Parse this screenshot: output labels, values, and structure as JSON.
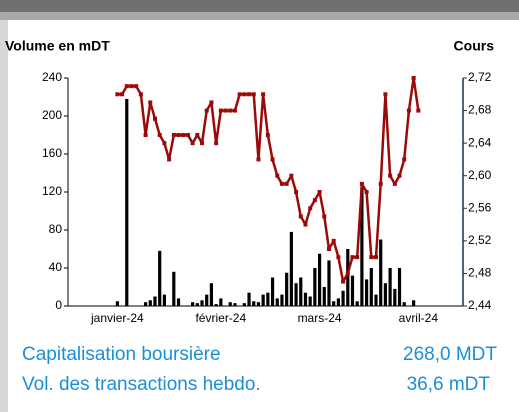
{
  "chart_data": {
    "type": "combo",
    "y_label": "Volume en mDT",
    "y2_label": "Cours",
    "categories": [
      null,
      null,
      null,
      null,
      null,
      null,
      null,
      null,
      null,
      null,
      "janvier-24",
      null,
      null,
      null,
      null,
      null,
      null,
      null,
      null,
      null,
      null,
      null,
      null,
      null,
      null,
      null,
      null,
      null,
      null,
      null,
      null,
      null,
      "février-24",
      null,
      null,
      null,
      null,
      null,
      null,
      null,
      null,
      null,
      null,
      null,
      null,
      null,
      null,
      null,
      null,
      null,
      null,
      null,
      null,
      "mars-24",
      null,
      null,
      null,
      null,
      null,
      null,
      null,
      null,
      null,
      null,
      null,
      null,
      null,
      null,
      null,
      null,
      null,
      null,
      null,
      null,
      "avril-24",
      null,
      null,
      null,
      null,
      null,
      null,
      null,
      null,
      null
    ],
    "series": [
      {
        "type": "bar",
        "color": "#000000",
        "values": [
          null,
          null,
          null,
          null,
          null,
          null,
          null,
          null,
          null,
          null,
          5,
          0,
          218,
          0,
          0,
          0,
          4,
          6,
          10,
          58,
          12,
          0,
          36,
          8,
          0,
          0,
          4,
          3,
          6,
          12,
          24,
          2,
          8,
          0,
          4,
          3,
          0,
          3,
          14,
          5,
          4,
          12,
          14,
          30,
          8,
          12,
          35,
          78,
          24,
          30,
          14,
          10,
          40,
          55,
          20,
          48,
          5,
          8,
          16,
          60,
          32,
          5,
          125,
          28,
          40,
          12,
          70,
          24,
          40,
          18,
          40,
          4,
          0,
          6,
          0,
          null,
          null,
          null,
          null,
          null,
          null,
          null,
          null,
          null
        ]
      },
      {
        "type": "line",
        "axis": "y2",
        "color": "#9b0a0a",
        "values": [
          null,
          null,
          null,
          null,
          null,
          null,
          null,
          null,
          null,
          null,
          2.7,
          2.7,
          2.71,
          2.71,
          2.71,
          2.7,
          2.65,
          2.69,
          2.67,
          2.65,
          2.64,
          2.62,
          2.65,
          2.65,
          2.65,
          2.65,
          2.64,
          2.65,
          2.64,
          2.68,
          2.69,
          2.64,
          2.68,
          2.68,
          2.68,
          2.68,
          2.7,
          2.7,
          2.7,
          2.7,
          2.62,
          2.7,
          2.65,
          2.62,
          2.6,
          2.59,
          2.59,
          2.6,
          2.58,
          2.55,
          2.54,
          2.56,
          2.57,
          2.58,
          2.55,
          2.51,
          2.52,
          2.5,
          2.47,
          2.48,
          2.5,
          2.5,
          2.59,
          2.58,
          2.5,
          2.5,
          2.59,
          2.7,
          2.6,
          2.59,
          2.6,
          2.62,
          2.68,
          2.72,
          2.68,
          null,
          null,
          null,
          null,
          null,
          null,
          null,
          null,
          null
        ]
      }
    ],
    "ylim": [
      0,
      240
    ],
    "yticks": [
      0,
      40,
      80,
      120,
      160,
      200,
      240
    ],
    "y2lim": [
      2.44,
      2.72
    ],
    "y2ticks": [
      {
        "value": 2.44,
        "label": "2,44"
      },
      {
        "value": 2.48,
        "label": "2,48"
      },
      {
        "value": 2.52,
        "label": "2,52"
      },
      {
        "value": 2.56,
        "label": "2,56"
      },
      {
        "value": 2.6,
        "label": "2,60"
      },
      {
        "value": 2.64,
        "label": "2,64"
      },
      {
        "value": 2.68,
        "label": "2,68"
      },
      {
        "value": 2.72,
        "label": "2,72"
      }
    ]
  },
  "summary": [
    {
      "label": "Capitalisation boursière",
      "value": "268,0 MDT"
    },
    {
      "label": "Vol. des transactions hebdo.",
      "value": "36,6 mDT"
    }
  ]
}
